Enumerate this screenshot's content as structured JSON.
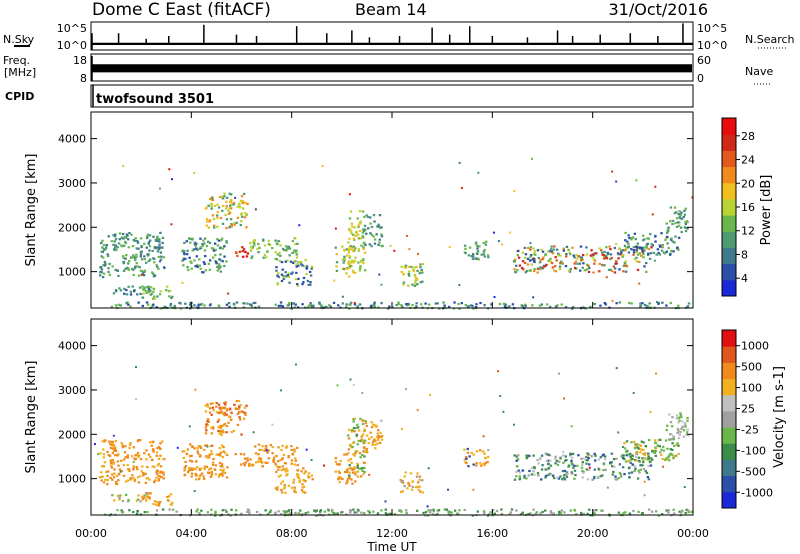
{
  "header": {
    "station": "Dome C East (fitACF)",
    "beam": "Beam 14",
    "date": "31/Oct/2016"
  },
  "side_labels": {
    "nsky": "N.Sky",
    "freq_line1": "Freq.",
    "freq_line2": "[MHz]",
    "cpid": "CPID",
    "nsearch": "N.Search",
    "nave": "Nave",
    "cpid_name": "twofsound 3501"
  },
  "colors": {
    "series_black": "#000000",
    "power_scale": [
      "#1a28d8",
      "#2a4fa8",
      "#3f7a8c",
      "#4e9a73",
      "#6ab84c",
      "#b8d434",
      "#f0c020",
      "#f08a1c",
      "#e2591c",
      "#d02818",
      "#e80c0c"
    ],
    "velocity_scale": [
      "#1a28d8",
      "#2a4fa8",
      "#3f7a8c",
      "#3e8c4a",
      "#6ab84c",
      "#a0a0a0",
      "#c0c0c0",
      "#f0b020",
      "#f08a1c",
      "#e0561c",
      "#e01010"
    ]
  },
  "chart_data": [
    {
      "type": "line",
      "name": "nsky-nsearch-panel",
      "yticks_left": [
        "10^5",
        "10^0"
      ],
      "yticks_right": [
        "10^5",
        "10^0"
      ],
      "xlim": [
        0,
        24
      ],
      "x_unit": "hours UT",
      "baseline": 0.22,
      "spikes": [
        [
          1.1,
          0.6
        ],
        [
          2.2,
          0.4
        ],
        [
          3.1,
          0.5
        ],
        [
          4.5,
          0.9
        ],
        [
          5.8,
          0.55
        ],
        [
          6.6,
          0.5
        ],
        [
          8.2,
          0.85
        ],
        [
          9.4,
          0.6
        ],
        [
          10.4,
          0.7
        ],
        [
          11.1,
          0.45
        ],
        [
          12.3,
          0.5
        ],
        [
          13.6,
          0.8
        ],
        [
          14.3,
          0.55
        ],
        [
          15.1,
          0.85
        ],
        [
          16.0,
          0.5
        ],
        [
          17.4,
          0.45
        ],
        [
          18.6,
          0.7
        ],
        [
          19.2,
          0.5
        ],
        [
          20.3,
          0.55
        ],
        [
          21.5,
          0.6
        ],
        [
          22.6,
          0.5
        ],
        [
          23.6,
          0.95
        ]
      ]
    },
    {
      "type": "area",
      "name": "frequency-nave-panel",
      "yticks_left": [
        "18",
        "8"
      ],
      "yticks_right": [
        "60",
        "0"
      ],
      "xlim": [
        0,
        24
      ],
      "band_low": 0.32,
      "band_high": 0.62
    },
    {
      "type": "heatmap",
      "name": "power-panel",
      "ylabel": "Slant Range [km]",
      "yticks": [
        1000,
        2000,
        3000,
        4000
      ],
      "ylim": [
        180,
        4600
      ],
      "xlim": [
        0,
        24
      ],
      "colorbar_label": "Power [dB]",
      "colorbar_ticks": [
        "28",
        "24",
        "20",
        "16",
        "12",
        "8",
        "4"
      ],
      "clusters": [
        {
          "t0": 0.3,
          "t1": 2.9,
          "r0": 900,
          "r1": 1900,
          "c": [
            3,
            4,
            2
          ]
        },
        {
          "t0": 0.8,
          "t1": 2.3,
          "r0": 500,
          "r1": 700,
          "c": [
            2,
            1,
            3
          ]
        },
        {
          "t0": 2.0,
          "t1": 3.2,
          "r0": 400,
          "r1": 700,
          "c": [
            5,
            3,
            4
          ]
        },
        {
          "t0": 3.6,
          "t1": 5.4,
          "r0": 1000,
          "r1": 1800,
          "c": [
            1,
            3,
            4
          ]
        },
        {
          "t0": 4.5,
          "t1": 6.2,
          "r0": 2000,
          "r1": 2800,
          "c": [
            7,
            6,
            5,
            3
          ]
        },
        {
          "t0": 5.7,
          "t1": 6.3,
          "r0": 1300,
          "r1": 1600,
          "c": [
            10,
            9,
            8
          ]
        },
        {
          "t0": 6.3,
          "t1": 8.2,
          "r0": 1300,
          "r1": 1800,
          "c": [
            3,
            4,
            5
          ]
        },
        {
          "t0": 7.3,
          "t1": 8.8,
          "r0": 700,
          "r1": 1300,
          "c": [
            1,
            2,
            5
          ]
        },
        {
          "t0": 9.7,
          "t1": 10.5,
          "r0": 900,
          "r1": 1600,
          "c": [
            5,
            6,
            3
          ]
        },
        {
          "t0": 10.2,
          "t1": 10.9,
          "r0": 1000,
          "r1": 2400,
          "c": [
            4,
            5,
            6
          ]
        },
        {
          "t0": 10.8,
          "t1": 11.6,
          "r0": 1600,
          "r1": 2300,
          "c": [
            2,
            3,
            4
          ]
        },
        {
          "t0": 12.3,
          "t1": 13.2,
          "r0": 700,
          "r1": 1200,
          "c": [
            3,
            6,
            5
          ]
        },
        {
          "t0": 14.8,
          "t1": 15.8,
          "r0": 1300,
          "r1": 1700,
          "c": [
            2,
            3,
            4
          ]
        },
        {
          "t0": 16.8,
          "t1": 22.3,
          "r0": 1000,
          "r1": 1600,
          "c": [
            1,
            2,
            3,
            4,
            5,
            7,
            8,
            9
          ]
        },
        {
          "t0": 21.2,
          "t1": 23.4,
          "r0": 1400,
          "r1": 1900,
          "c": [
            1,
            3,
            4
          ]
        },
        {
          "t0": 22.9,
          "t1": 23.8,
          "r0": 1900,
          "r1": 2500,
          "c": [
            2,
            3,
            4
          ]
        },
        {
          "t0": 0.5,
          "t1": 23.9,
          "r0": 190,
          "r1": 330,
          "c": [
            1,
            2,
            3,
            4
          ]
        }
      ]
    },
    {
      "type": "heatmap",
      "name": "velocity-panel",
      "ylabel": "Slant Range [km]",
      "yticks": [
        1000,
        2000,
        3000,
        4000
      ],
      "ylim": [
        180,
        4600
      ],
      "xlim": [
        0,
        24
      ],
      "xlabel": "Time UT",
      "xticks": [
        "00:00",
        "04:00",
        "08:00",
        "12:00",
        "16:00",
        "20:00",
        "00:00"
      ],
      "colorbar_label": "Velocity [m s-1]",
      "colorbar_ticks": [
        "1000",
        "500",
        "100",
        "25",
        "-25",
        "-100",
        "-500",
        "-1000"
      ],
      "clusters": [
        {
          "t0": 0.3,
          "t1": 2.9,
          "r0": 900,
          "r1": 1900,
          "c": [
            7,
            8,
            8
          ]
        },
        {
          "t0": 0.8,
          "t1": 2.3,
          "r0": 500,
          "r1": 700,
          "c": [
            4,
            5,
            7
          ]
        },
        {
          "t0": 2.0,
          "t1": 3.2,
          "r0": 400,
          "r1": 700,
          "c": [
            7,
            8
          ]
        },
        {
          "t0": 3.6,
          "t1": 5.4,
          "r0": 1000,
          "r1": 1800,
          "c": [
            7,
            8,
            8
          ]
        },
        {
          "t0": 4.5,
          "t1": 6.2,
          "r0": 2000,
          "r1": 2800,
          "c": [
            7,
            8,
            8,
            9
          ]
        },
        {
          "t0": 5.7,
          "t1": 6.3,
          "r0": 1300,
          "r1": 1600,
          "c": [
            8,
            8
          ]
        },
        {
          "t0": 6.3,
          "t1": 8.2,
          "r0": 1300,
          "r1": 1800,
          "c": [
            7,
            8,
            8
          ]
        },
        {
          "t0": 7.3,
          "t1": 8.8,
          "r0": 700,
          "r1": 1300,
          "c": [
            7,
            8
          ]
        },
        {
          "t0": 9.7,
          "t1": 10.5,
          "r0": 900,
          "r1": 1600,
          "c": [
            7,
            8,
            8
          ]
        },
        {
          "t0": 10.2,
          "t1": 10.9,
          "r0": 1000,
          "r1": 2400,
          "c": [
            3,
            4,
            7,
            8
          ]
        },
        {
          "t0": 10.8,
          "t1": 11.6,
          "r0": 1600,
          "r1": 2300,
          "c": [
            8,
            7
          ]
        },
        {
          "t0": 12.3,
          "t1": 13.2,
          "r0": 700,
          "r1": 1200,
          "c": [
            7,
            8,
            5
          ]
        },
        {
          "t0": 14.8,
          "t1": 15.8,
          "r0": 1300,
          "r1": 1700,
          "c": [
            7,
            8,
            1
          ]
        },
        {
          "t0": 16.8,
          "t1": 22.3,
          "r0": 1000,
          "r1": 1600,
          "c": [
            1,
            2,
            3,
            3,
            4,
            5,
            6
          ]
        },
        {
          "t0": 21.2,
          "t1": 23.4,
          "r0": 1400,
          "r1": 1900,
          "c": [
            3,
            4,
            7
          ]
        },
        {
          "t0": 22.9,
          "t1": 23.8,
          "r0": 1900,
          "r1": 2500,
          "c": [
            5,
            6,
            4
          ]
        },
        {
          "t0": 0.5,
          "t1": 23.9,
          "r0": 190,
          "r1": 330,
          "c": [
            3,
            4,
            5
          ]
        }
      ]
    }
  ]
}
